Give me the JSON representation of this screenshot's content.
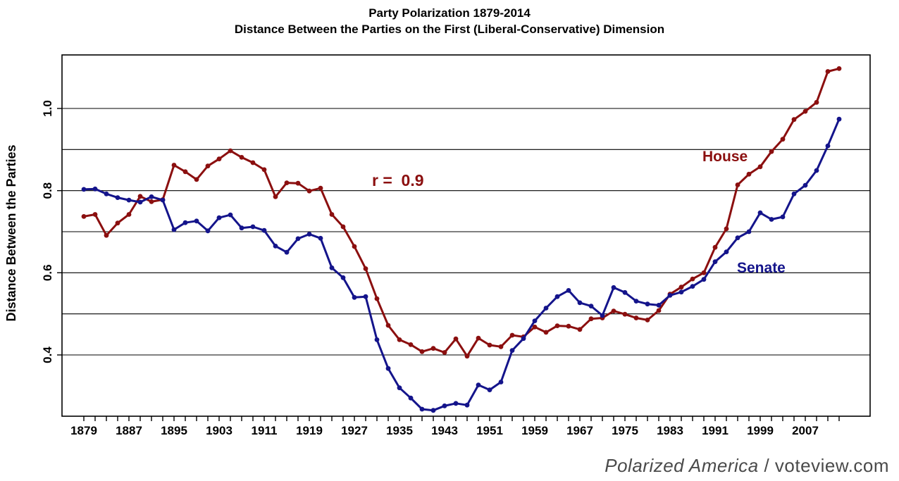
{
  "title": {
    "line1": "Party Polarization 1879-2014",
    "line2": "Distance Between the Parties on the First (Liberal-Conservative) Dimension"
  },
  "footer": {
    "italic_part": "Polarized America",
    "regular_part": " / voteview.com"
  },
  "chart_data": {
    "type": "line",
    "title": "Party Polarization 1879-2014",
    "subtitle": "Distance Between the Parties on the First (Liberal-Conservative) Dimension",
    "ylabel": "Distance Between the Parties",
    "xlabel": "",
    "grid": "horizontal",
    "ylim": [
      0.25,
      1.13
    ],
    "xlim": [
      1875,
      2018.5
    ],
    "gridline_values": [
      0.4,
      0.5,
      0.6,
      0.7,
      0.8,
      0.9,
      1.0
    ],
    "ytick_values": [
      0.4,
      0.6,
      0.8,
      1.0
    ],
    "ytick_labels": [
      "0.4",
      "0.6",
      "0.8",
      "1.0"
    ],
    "xtick_labels": [
      "1879",
      "1887",
      "1895",
      "1903",
      "1911",
      "1919",
      "1927",
      "1935",
      "1943",
      "1951",
      "1959",
      "1967",
      "1975",
      "1983",
      "1991",
      "1999",
      "2007"
    ],
    "annotation": {
      "text": "r =  0.9"
    },
    "x_years": [
      1879,
      1881,
      1883,
      1885,
      1887,
      1889,
      1891,
      1893,
      1895,
      1897,
      1899,
      1901,
      1903,
      1905,
      1907,
      1909,
      1911,
      1913,
      1915,
      1917,
      1919,
      1921,
      1923,
      1925,
      1927,
      1929,
      1931,
      1933,
      1935,
      1937,
      1939,
      1941,
      1943,
      1945,
      1947,
      1949,
      1951,
      1953,
      1955,
      1957,
      1959,
      1961,
      1963,
      1965,
      1967,
      1969,
      1971,
      1973,
      1975,
      1977,
      1979,
      1981,
      1983,
      1985,
      1987,
      1989,
      1991,
      1993,
      1995,
      1997,
      1999,
      2001,
      2003,
      2005,
      2007,
      2009,
      2011,
      2013
    ],
    "series": [
      {
        "name": "House",
        "color": "#8B0F0F",
        "values": [
          0.737,
          0.742,
          0.691,
          0.721,
          0.742,
          0.786,
          0.773,
          0.778,
          0.862,
          0.846,
          0.827,
          0.86,
          0.877,
          0.897,
          0.881,
          0.868,
          0.851,
          0.785,
          0.819,
          0.818,
          0.799,
          0.806,
          0.742,
          0.712,
          0.664,
          0.61,
          0.537,
          0.472,
          0.437,
          0.425,
          0.408,
          0.416,
          0.406,
          0.439,
          0.397,
          0.441,
          0.424,
          0.42,
          0.448,
          0.444,
          0.468,
          0.455,
          0.471,
          0.47,
          0.462,
          0.488,
          0.49,
          0.507,
          0.499,
          0.49,
          0.485,
          0.508,
          0.548,
          0.565,
          0.585,
          0.6,
          0.662,
          0.707,
          0.814,
          0.84,
          0.858,
          0.895,
          0.925,
          0.973,
          0.993,
          1.015,
          1.09,
          1.097
        ]
      },
      {
        "name": "Senate",
        "color": "#14148B",
        "values": [
          0.803,
          0.804,
          0.792,
          0.783,
          0.777,
          0.772,
          0.785,
          0.777,
          0.705,
          0.722,
          0.726,
          0.702,
          0.734,
          0.741,
          0.709,
          0.712,
          0.703,
          0.665,
          0.65,
          0.683,
          0.694,
          0.684,
          0.612,
          0.588,
          0.54,
          0.542,
          0.437,
          0.367,
          0.32,
          0.295,
          0.268,
          0.265,
          0.276,
          0.282,
          0.278,
          0.327,
          0.315,
          0.334,
          0.411,
          0.44,
          0.483,
          0.514,
          0.542,
          0.557,
          0.527,
          0.519,
          0.496,
          0.564,
          0.552,
          0.531,
          0.524,
          0.521,
          0.545,
          0.553,
          0.567,
          0.584,
          0.627,
          0.651,
          0.685,
          0.7,
          0.746,
          0.73,
          0.736,
          0.792,
          0.813,
          0.849,
          0.909,
          0.974
        ]
      }
    ]
  }
}
